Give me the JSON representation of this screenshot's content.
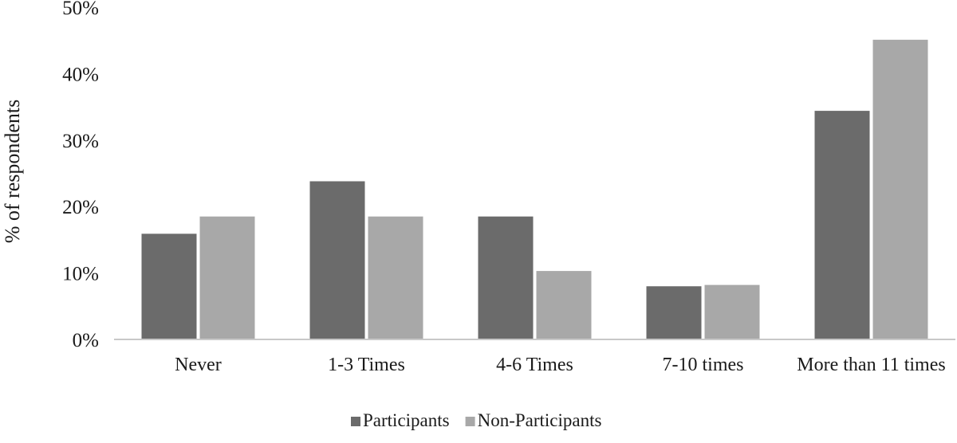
{
  "chart_data": {
    "type": "bar",
    "title": "",
    "xlabel": "",
    "ylabel": "% of respondents",
    "ylim": [
      0,
      50
    ],
    "yticks": [
      0,
      10,
      20,
      30,
      40,
      50
    ],
    "ytick_labels": [
      "0%",
      "10%",
      "20%",
      "30%",
      "40%",
      "50%"
    ],
    "grid": false,
    "legend_position": "bottom",
    "categories": [
      "Never",
      "1-3 Times",
      "4-6 Times",
      "7-10 times",
      "More than 11 times"
    ],
    "series": [
      {
        "name": "Participants",
        "color": "#6b6b6b",
        "values": [
          15.9,
          23.8,
          18.5,
          8.0,
          34.4
        ]
      },
      {
        "name": "Non-Participants",
        "color": "#a8a8a8",
        "values": [
          18.5,
          18.5,
          10.3,
          8.2,
          45.1
        ]
      }
    ]
  }
}
